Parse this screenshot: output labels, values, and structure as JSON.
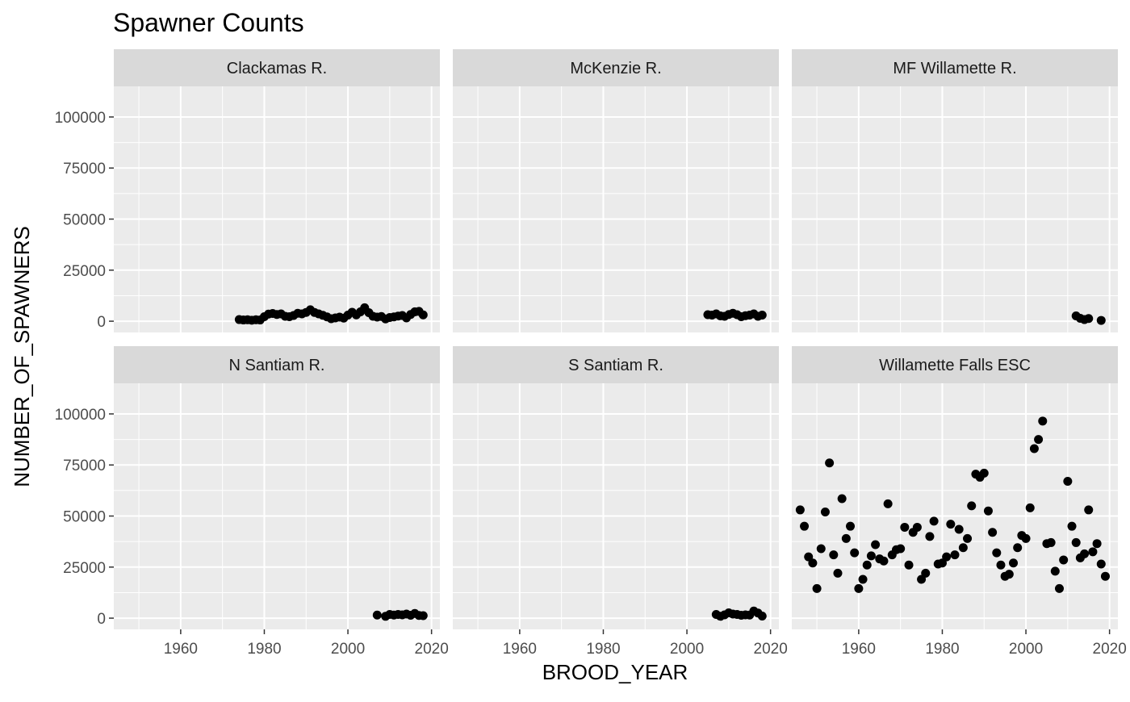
{
  "chart_data": {
    "type": "scatter",
    "title": "Spawner Counts",
    "xlabel": "BROOD_YEAR",
    "ylabel": "NUMBER_OF_SPAWNERS",
    "xlim": [
      1944,
      2022
    ],
    "ylim": [
      -5500,
      115000
    ],
    "x_ticks": [
      1960,
      1980,
      2000,
      2020
    ],
    "y_ticks": [
      0,
      25000,
      50000,
      75000,
      100000
    ],
    "x_tick_labels": [
      "1960",
      "1980",
      "2000",
      "2020"
    ],
    "y_tick_labels": [
      "0",
      "25000",
      "50000",
      "75000",
      "100000"
    ],
    "grid": true,
    "marker_color": "#000000",
    "panel_background": "#ebebeb",
    "strip_background": "#d9d9d9",
    "panels": [
      {
        "name": "Clackamas R.",
        "points": [
          [
            1974,
            800
          ],
          [
            1975,
            600
          ],
          [
            1976,
            700
          ],
          [
            1977,
            500
          ],
          [
            1978,
            700
          ],
          [
            1979,
            600
          ],
          [
            1980,
            2200
          ],
          [
            1981,
            3500
          ],
          [
            1982,
            3800
          ],
          [
            1983,
            3300
          ],
          [
            1984,
            3600
          ],
          [
            1985,
            2400
          ],
          [
            1986,
            2200
          ],
          [
            1987,
            2800
          ],
          [
            1988,
            3900
          ],
          [
            1989,
            3600
          ],
          [
            1990,
            4300
          ],
          [
            1991,
            5600
          ],
          [
            1992,
            4300
          ],
          [
            1993,
            3600
          ],
          [
            1994,
            2900
          ],
          [
            1995,
            2100
          ],
          [
            1996,
            1200
          ],
          [
            1997,
            1600
          ],
          [
            1998,
            2000
          ],
          [
            1999,
            1500
          ],
          [
            2000,
            3000
          ],
          [
            2001,
            4400
          ],
          [
            2002,
            3100
          ],
          [
            2003,
            4600
          ],
          [
            2004,
            6600
          ],
          [
            2005,
            4200
          ],
          [
            2006,
            2400
          ],
          [
            2007,
            2000
          ],
          [
            2008,
            2300
          ],
          [
            2009,
            1100
          ],
          [
            2010,
            1800
          ],
          [
            2011,
            2100
          ],
          [
            2012,
            2500
          ],
          [
            2013,
            2800
          ],
          [
            2014,
            1600
          ],
          [
            2015,
            3300
          ],
          [
            2016,
            4600
          ],
          [
            2017,
            4800
          ],
          [
            2018,
            3100
          ]
        ]
      },
      {
        "name": "McKenzie R.",
        "points": [
          [
            2005,
            3200
          ],
          [
            2006,
            3000
          ],
          [
            2007,
            3600
          ],
          [
            2008,
            2600
          ],
          [
            2009,
            2400
          ],
          [
            2010,
            3300
          ],
          [
            2011,
            3900
          ],
          [
            2012,
            3200
          ],
          [
            2013,
            2200
          ],
          [
            2014,
            2700
          ],
          [
            2015,
            3000
          ],
          [
            2016,
            3600
          ],
          [
            2017,
            2400
          ],
          [
            2018,
            3000
          ]
        ]
      },
      {
        "name": "MF Willamette R.",
        "points": [
          [
            2012,
            2600
          ],
          [
            2013,
            1400
          ],
          [
            2014,
            800
          ],
          [
            2015,
            1300
          ],
          [
            2018,
            400
          ]
        ]
      },
      {
        "name": "N Santiam R.",
        "points": [
          [
            2007,
            1500
          ],
          [
            2009,
            900
          ],
          [
            2010,
            1800
          ],
          [
            2011,
            1500
          ],
          [
            2012,
            1800
          ],
          [
            2013,
            1600
          ],
          [
            2014,
            2000
          ],
          [
            2015,
            1400
          ],
          [
            2016,
            2300
          ],
          [
            2017,
            1300
          ],
          [
            2018,
            1200
          ]
        ]
      },
      {
        "name": "S Santiam R.",
        "points": [
          [
            2007,
            1800
          ],
          [
            2008,
            900
          ],
          [
            2009,
            1600
          ],
          [
            2010,
            2600
          ],
          [
            2011,
            2000
          ],
          [
            2012,
            1800
          ],
          [
            2013,
            1400
          ],
          [
            2014,
            1600
          ],
          [
            2015,
            1500
          ],
          [
            2016,
            3500
          ],
          [
            2017,
            2500
          ],
          [
            2018,
            1000
          ]
        ]
      },
      {
        "name": "Willamette Falls ESC",
        "points": [
          [
            1946,
            53000
          ],
          [
            1947,
            45000
          ],
          [
            1948,
            30000
          ],
          [
            1949,
            27000
          ],
          [
            1950,
            14500
          ],
          [
            1951,
            34000
          ],
          [
            1952,
            52000
          ],
          [
            1953,
            76000
          ],
          [
            1954,
            31000
          ],
          [
            1955,
            22000
          ],
          [
            1956,
            58500
          ],
          [
            1957,
            39000
          ],
          [
            1958,
            45000
          ],
          [
            1959,
            32000
          ],
          [
            1960,
            14500
          ],
          [
            1961,
            19000
          ],
          [
            1962,
            26000
          ],
          [
            1963,
            30500
          ],
          [
            1964,
            36000
          ],
          [
            1965,
            29000
          ],
          [
            1966,
            28000
          ],
          [
            1967,
            56000
          ],
          [
            1968,
            31000
          ],
          [
            1969,
            33500
          ],
          [
            1970,
            34000
          ],
          [
            1971,
            44500
          ],
          [
            1972,
            26000
          ],
          [
            1973,
            42000
          ],
          [
            1974,
            44500
          ],
          [
            1975,
            19000
          ],
          [
            1976,
            22000
          ],
          [
            1977,
            40000
          ],
          [
            1978,
            47500
          ],
          [
            1979,
            26500
          ],
          [
            1980,
            27000
          ],
          [
            1981,
            30000
          ],
          [
            1982,
            46000
          ],
          [
            1983,
            31000
          ],
          [
            1984,
            43500
          ],
          [
            1985,
            34500
          ],
          [
            1986,
            39000
          ],
          [
            1987,
            55000
          ],
          [
            1988,
            70500
          ],
          [
            1989,
            69000
          ],
          [
            1990,
            71000
          ],
          [
            1991,
            52500
          ],
          [
            1992,
            42000
          ],
          [
            1993,
            32000
          ],
          [
            1994,
            26000
          ],
          [
            1995,
            20500
          ],
          [
            1996,
            21500
          ],
          [
            1997,
            27000
          ],
          [
            1998,
            34500
          ],
          [
            1999,
            40500
          ],
          [
            2000,
            39000
          ],
          [
            2001,
            54000
          ],
          [
            2002,
            83000
          ],
          [
            2003,
            87500
          ],
          [
            2004,
            96500
          ],
          [
            2005,
            36500
          ],
          [
            2006,
            37000
          ],
          [
            2007,
            23000
          ],
          [
            2008,
            14500
          ],
          [
            2009,
            28500
          ],
          [
            2010,
            67000
          ],
          [
            2011,
            45000
          ],
          [
            2012,
            37000
          ],
          [
            2013,
            29500
          ],
          [
            2014,
            31500
          ],
          [
            2015,
            53000
          ],
          [
            2016,
            32500
          ],
          [
            2017,
            36500
          ],
          [
            2018,
            26500
          ],
          [
            2019,
            20500
          ]
        ]
      }
    ]
  }
}
